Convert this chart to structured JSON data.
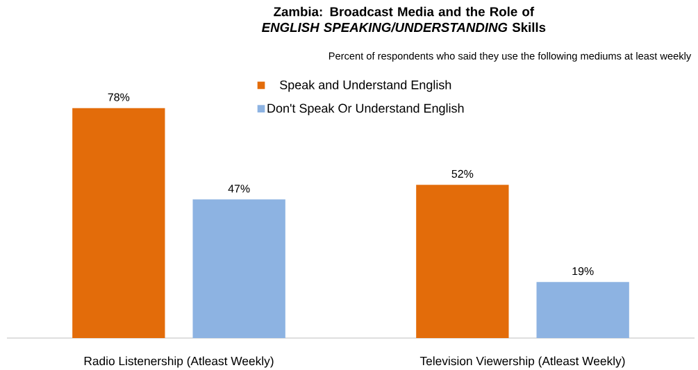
{
  "chart_data": {
    "type": "bar",
    "title": "Zambia: Broadcast Media and the Role of *ENGLISH SPEAKING/UNDERSTANDING* Skills",
    "subtitle": "Percent of respondents who said they use the following mediums at least weekly",
    "categories": [
      "Radio Listenership (Atleast Weekly)",
      "Television Viewership (Atleast Weekly)"
    ],
    "series": [
      {
        "name": "Speak and Understand English",
        "color": "#e36c0a",
        "values": [
          78,
          52
        ],
        "value_labels": [
          "78%",
          "52%"
        ]
      },
      {
        "name": "Don't Speak Or Understand English",
        "color": "#8db3e2",
        "values": [
          47,
          19
        ],
        "value_labels": [
          "47%",
          "19%"
        ]
      }
    ],
    "legend": "top"
  }
}
